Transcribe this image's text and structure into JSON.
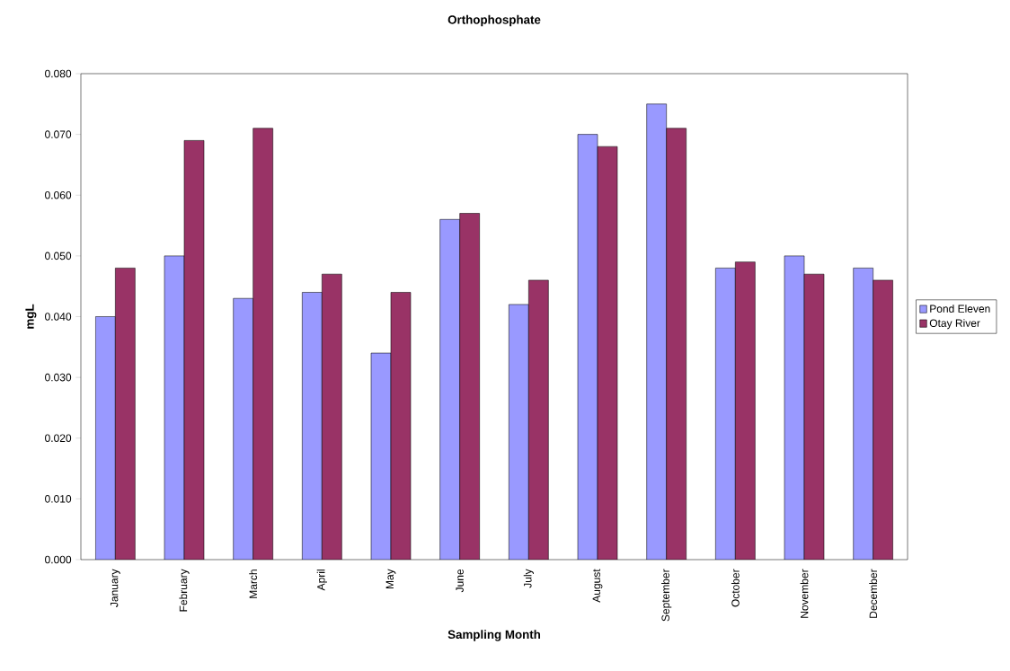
{
  "chart_data": {
    "type": "bar",
    "title": "Orthophosphate",
    "xlabel": "Sampling Month",
    "ylabel": "mgL",
    "categories": [
      "January",
      "February",
      "March",
      "April",
      "May",
      "June",
      "July",
      "August",
      "September",
      "October",
      "November",
      "December"
    ],
    "series": [
      {
        "name": "Pond Eleven",
        "color": "#9999ff",
        "values": [
          0.04,
          0.05,
          0.043,
          0.044,
          0.034,
          0.056,
          0.042,
          0.07,
          0.075,
          0.048,
          0.05,
          0.048
        ]
      },
      {
        "name": "Otay River",
        "color": "#993366",
        "values": [
          0.048,
          0.069,
          0.071,
          0.047,
          0.044,
          0.057,
          0.046,
          0.068,
          0.071,
          0.049,
          0.047,
          0.046
        ]
      }
    ],
    "ylim": [
      0,
      0.08
    ],
    "yticks": [
      {
        "value": 0,
        "label": "0.000"
      },
      {
        "value": 0.01,
        "label": "0.010"
      },
      {
        "value": 0.02,
        "label": "0.020"
      },
      {
        "value": 0.03,
        "label": "0.030"
      },
      {
        "value": 0.04,
        "label": "0.040"
      },
      {
        "value": 0.05,
        "label": "0.050"
      },
      {
        "value": 0.06,
        "label": "0.060"
      },
      {
        "value": 0.07,
        "label": "0.070"
      },
      {
        "value": 0.08,
        "label": "0.080"
      }
    ],
    "grid": false,
    "legend": "right"
  }
}
